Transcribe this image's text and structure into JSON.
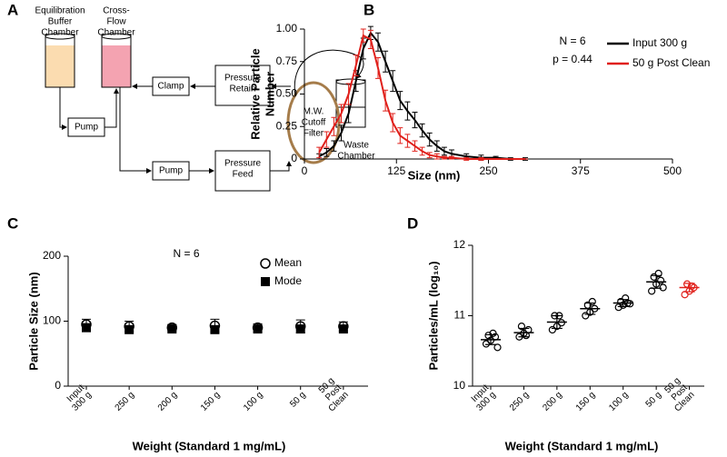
{
  "diagram": {
    "panel_label": "A",
    "nodes": [
      {
        "label": [
          "Equilibration",
          "Buffer",
          "Chamber"
        ]
      },
      {
        "label": [
          "Cross-",
          "Flow",
          "Chamber"
        ]
      },
      {
        "label": [
          "Clamp"
        ]
      },
      {
        "label": [
          "Pressure",
          "Retain"
        ]
      },
      {
        "label": [
          "Pump"
        ]
      },
      {
        "label": [
          "M.W.",
          "Cutoff",
          "Filter"
        ]
      },
      {
        "label": [
          "Waste",
          "Chamber"
        ]
      },
      {
        "label": [
          "Pump"
        ]
      },
      {
        "label": [
          "Pressure",
          "Feed"
        ]
      }
    ]
  },
  "chart_data": [
    {
      "type": "line",
      "panel_label": "B",
      "x_label": "Size (nm)",
      "y_label": [
        "Relative Particle",
        "Number"
      ],
      "annotations": [
        "N = 6",
        "p = 0.44"
      ],
      "x": [
        20,
        30,
        40,
        50,
        60,
        70,
        80,
        90,
        100,
        110,
        120,
        130,
        140,
        150,
        160,
        170,
        180,
        190,
        200,
        220,
        240,
        260,
        280,
        300
      ],
      "series": [
        {
          "name": "Input 300 g",
          "color": "#000000",
          "values": [
            0.02,
            0.05,
            0.1,
            0.2,
            0.35,
            0.6,
            0.85,
            0.97,
            0.9,
            0.75,
            0.6,
            0.45,
            0.37,
            0.3,
            0.22,
            0.15,
            0.1,
            0.06,
            0.04,
            0.02,
            0.01,
            0.01,
            0,
            0
          ],
          "errors": [
            0.02,
            0.03,
            0.04,
            0.06,
            0.07,
            0.08,
            0.08,
            0.05,
            0.07,
            0.08,
            0.08,
            0.07,
            0.07,
            0.06,
            0.05,
            0.05,
            0.04,
            0.03,
            0.03,
            0.02,
            0.02,
            0.01,
            0.01,
            0.01
          ]
        },
        {
          "name": "50 g Post Clean",
          "color": "#e0201b",
          "values": [
            0.05,
            0.15,
            0.25,
            0.35,
            0.5,
            0.72,
            0.95,
            0.92,
            0.7,
            0.45,
            0.28,
            0.18,
            0.14,
            0.1,
            0.06,
            0.03,
            0.02,
            0.01,
            0.01,
            0,
            0,
            0,
            0,
            0
          ],
          "errors": [
            0.04,
            0.06,
            0.07,
            0.07,
            0.08,
            0.08,
            0.05,
            0.07,
            0.08,
            0.08,
            0.07,
            0.06,
            0.05,
            0.04,
            0.03,
            0.02,
            0.02,
            0.01,
            0.01,
            0.01,
            0.01,
            0,
            0,
            0
          ]
        }
      ],
      "xlim": [
        0,
        500
      ],
      "xticks": [
        0,
        125,
        250,
        375,
        500
      ],
      "ylim": [
        0,
        1
      ],
      "yticks": [
        0,
        0.25,
        {
          "value": 0.5,
          "label": "0.50"
        },
        0.75,
        {
          "value": 1,
          "label": "1.00"
        }
      ]
    },
    {
      "type": "scatter",
      "panel_label": "C",
      "x_label": "Weight (Standard 1 mg/mL)",
      "y_label": "Particle Size (nm)",
      "annotations": [
        "N = 6"
      ],
      "categories": [
        [
          "Input",
          "300 g"
        ],
        [
          "250 g"
        ],
        [
          "200 g"
        ],
        [
          "150 g"
        ],
        [
          "100 g"
        ],
        [
          "50 g"
        ],
        [
          "50 g",
          "Post",
          "Clean"
        ]
      ],
      "series": [
        {
          "name": "Mean",
          "marker": "circle-open",
          "color": "#000000",
          "values": [
            95,
            92,
            90,
            93,
            90,
            92,
            92
          ],
          "errors": [
            8,
            8,
            5,
            10,
            6,
            10,
            7
          ]
        },
        {
          "name": "Mode",
          "marker": "square",
          "color": "#000000",
          "values": [
            90,
            87,
            88,
            87,
            88,
            88,
            88
          ]
        }
      ],
      "ylim": [
        0,
        200
      ],
      "yticks": [
        0,
        100,
        200
      ]
    },
    {
      "type": "strip",
      "panel_label": "D",
      "x_label": "Weight (Standard 1 mg/mL)",
      "y_label": "Particles/mL (log₁₀)",
      "categories": [
        [
          "Input",
          "300 g"
        ],
        [
          "250 g"
        ],
        [
          "200 g"
        ],
        [
          "150 g"
        ],
        [
          "100 g"
        ],
        [
          "50 g"
        ],
        [
          "50 g",
          "Post",
          "Clean"
        ]
      ],
      "colors": [
        "#000000",
        "#000000",
        "#000000",
        "#000000",
        "#000000",
        "#000000",
        "#e0201b"
      ],
      "points": [
        [
          10.6,
          10.65,
          10.7,
          10.72,
          10.75,
          10.55
        ],
        [
          10.7,
          10.75,
          10.8,
          10.85,
          10.72
        ],
        [
          10.8,
          10.85,
          10.9,
          11.0,
          11.0
        ],
        [
          11.0,
          11.05,
          11.1,
          11.15,
          11.2
        ],
        [
          11.12,
          11.15,
          11.18,
          11.2,
          11.25,
          11.17
        ],
        [
          11.35,
          11.45,
          11.5,
          11.55,
          11.6,
          11.4
        ],
        [
          11.3,
          11.35,
          11.4,
          11.45,
          11.42
        ]
      ],
      "means": [
        10.66,
        10.76,
        10.91,
        11.1,
        11.18,
        11.48,
        11.4
      ],
      "sds": [
        0.07,
        0.06,
        0.09,
        0.08,
        0.05,
        0.09,
        0.06
      ],
      "ylim": [
        10,
        12
      ],
      "yticks": [
        10,
        11,
        12
      ]
    }
  ]
}
